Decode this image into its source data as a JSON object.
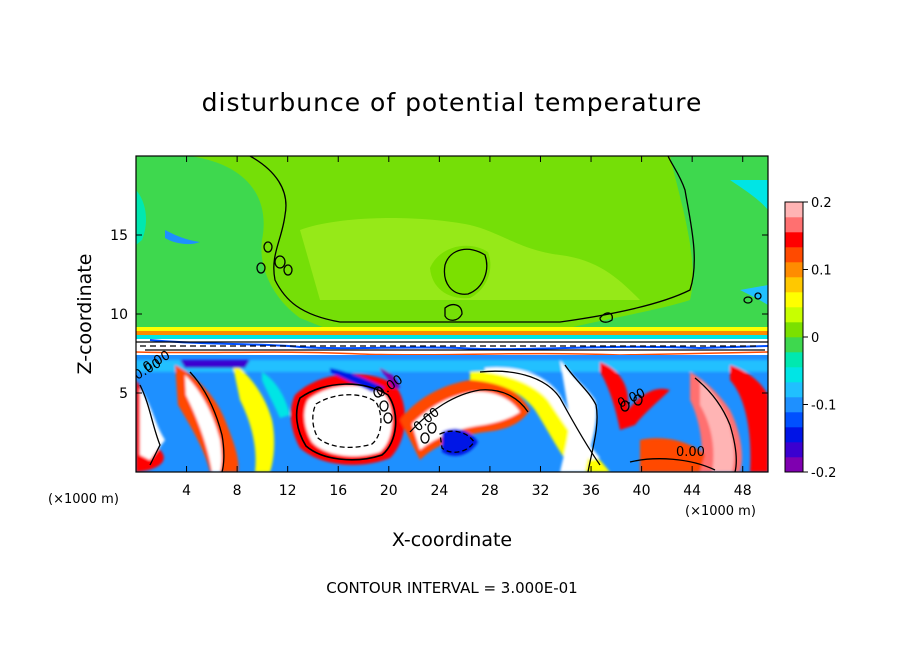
{
  "chart_data": {
    "type": "heatmap",
    "title": "disturbunce of potential temperature",
    "xlabel": "X-coordinate",
    "ylabel": "Z-coordinate",
    "x_unit": "(×1000 m)",
    "z_unit": "(×1000 m)",
    "xlim": [
      0,
      50
    ],
    "ylim": [
      0,
      20
    ],
    "x_ticks": [
      4,
      8,
      12,
      16,
      20,
      24,
      28,
      32,
      36,
      40,
      44,
      48
    ],
    "y_ticks": [
      5,
      10,
      15
    ],
    "colorbar": {
      "range": [
        -0.2,
        0.2
      ],
      "ticks": [
        "0.2",
        "0.1",
        "0",
        "-0.1",
        "-0.2"
      ],
      "colors": [
        "#7f00b0",
        "#3b00d0",
        "#0014e6",
        "#0050ff",
        "#1e90ff",
        "#20c0ff",
        "#00e5e5",
        "#00e8b0",
        "#3ed84e",
        "#7be000",
        "#c8ff00",
        "#ffff00",
        "#ffc800",
        "#ff8c00",
        "#ff4a00",
        "#ff0000",
        "#ff7070",
        "#ffb4b4"
      ]
    },
    "contour_labels": [
      "0.00",
      "0.00",
      "0.00",
      "0.00",
      "0.00",
      "0.00"
    ],
    "annotation": "CONTOUR INTERVAL = 3.000E-01"
  }
}
